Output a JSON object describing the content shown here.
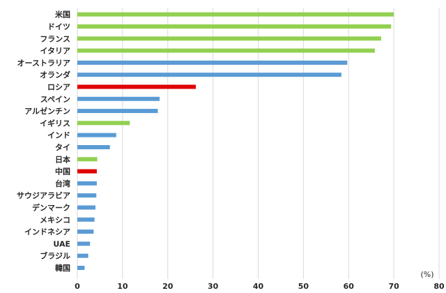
{
  "chart_data": {
    "type": "bar",
    "orientation": "horizontal",
    "title": "",
    "xlabel": "(%)",
    "ylabel": "",
    "xlim": [
      0,
      80
    ],
    "x_ticks": [
      "0",
      "10",
      "20",
      "30",
      "40",
      "50",
      "60",
      "70",
      "80"
    ],
    "grid": "vertical",
    "legend": "none",
    "colors": {
      "green": "#92d050",
      "blue": "#5b9bd5",
      "red": "#e00000"
    },
    "categories": [
      "米国",
      "ドイツ",
      "フランス",
      "イタリア",
      "オーストラリア",
      "オランダ",
      "ロシア",
      "スペイン",
      "アルゼンチン",
      "イギリス",
      "インド",
      "タイ",
      "日本",
      "中国",
      "台湾",
      "サウジアラビア",
      "デンマーク",
      "メキシコ",
      "インドネシア",
      "UAE",
      "ブラジル",
      "韓国"
    ],
    "values": [
      70.0,
      69.4,
      67.2,
      65.8,
      59.7,
      58.4,
      26.2,
      18.2,
      17.8,
      11.6,
      8.6,
      7.2,
      4.4,
      4.3,
      4.3,
      4.2,
      4.0,
      3.8,
      3.6,
      2.8,
      2.4,
      1.6
    ],
    "bar_colors": [
      "green",
      "green",
      "green",
      "green",
      "blue",
      "blue",
      "red",
      "blue",
      "blue",
      "green",
      "blue",
      "blue",
      "green",
      "red",
      "blue",
      "blue",
      "blue",
      "blue",
      "blue",
      "blue",
      "blue",
      "blue"
    ]
  }
}
